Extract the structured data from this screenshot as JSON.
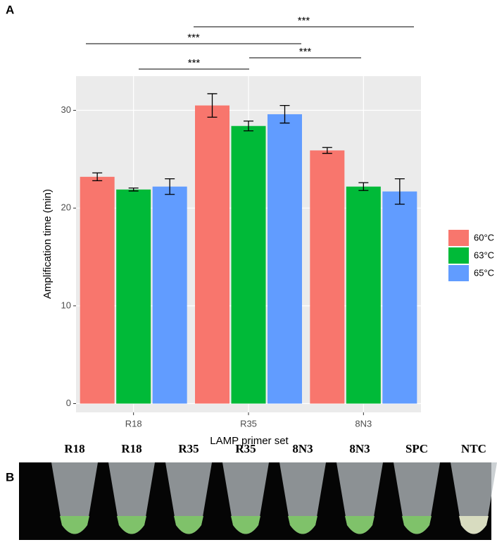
{
  "panel_a_label": "A",
  "panel_b_label": "B",
  "chart_data": {
    "type": "bar",
    "y_label": "Amplification time (min)",
    "x_label": "LAMP primer set",
    "categories": [
      "R18",
      "R35",
      "8N3"
    ],
    "series": [
      {
        "name": "60°C",
        "color": "#F8766D",
        "values": [
          23.2,
          30.5,
          25.9
        ],
        "errors": [
          0.4,
          1.2,
          0.3
        ]
      },
      {
        "name": "63°C",
        "color": "#00BA38",
        "values": [
          21.9,
          28.4,
          22.2
        ],
        "errors": [
          0.15,
          0.5,
          0.4
        ]
      },
      {
        "name": "65°C",
        "color": "#619CFF",
        "values": [
          22.2,
          29.6,
          21.7
        ],
        "errors": [
          0.8,
          0.9,
          1.3
        ]
      }
    ],
    "ylim": [
      -0.9,
      33.5
    ],
    "yticks": [
      0,
      10,
      20,
      30
    ],
    "grid": true,
    "annotations": [
      "***",
      "***",
      "***",
      "***"
    ]
  },
  "panel_b": {
    "labels": [
      "R18",
      "R18",
      "R35",
      "R35",
      "8N3",
      "8N3",
      "SPC",
      "NTC"
    ]
  }
}
